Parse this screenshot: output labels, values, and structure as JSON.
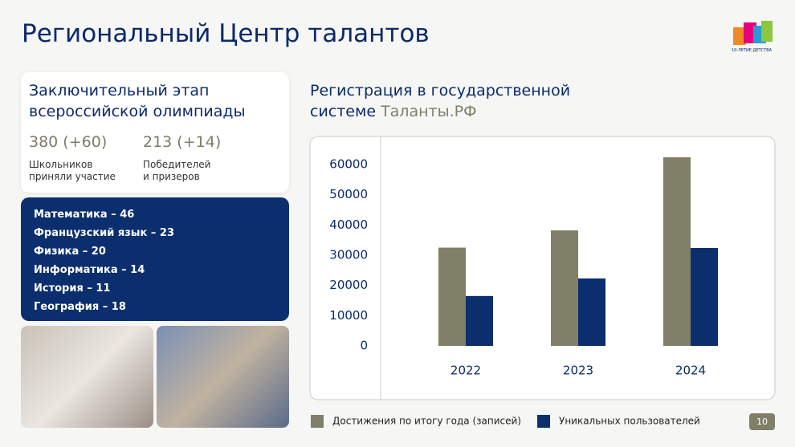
{
  "header": {
    "title": "Региональный Центр талантов",
    "logo_text": "10-ЛЕТИЕ ДЕТСТВА"
  },
  "olympiad": {
    "title": "Заключительный этап\nвсероссийской олимпиады",
    "stats": [
      {
        "value": "380 (+60)",
        "label": "Школьников\nприняли участие"
      },
      {
        "value": "213 (+14)",
        "label": "Победителей\nи призеров"
      }
    ],
    "subjects": [
      "Математика – 46",
      "Французский язык – 23",
      "Физика – 20",
      "Информатика – 14",
      "История – 11",
      "География – 18"
    ]
  },
  "chart_data": {
    "type": "bar",
    "title": "Регистрация в государственной\nсистеме ",
    "title_highlight": "Таланты.РФ",
    "categories": [
      "2022",
      "2023",
      "2024"
    ],
    "series": [
      {
        "name": "Достижения по итогу года (записей)",
        "color": "#807f67",
        "values": [
          32500,
          38200,
          62400
        ]
      },
      {
        "name": "Уникальных пользователей",
        "color": "#0b2f6e",
        "values": [
          16500,
          22300,
          32400
        ]
      }
    ],
    "ylim": [
      0,
      70000
    ],
    "yticks": [
      0,
      10000,
      20000,
      30000,
      40000,
      50000,
      60000
    ],
    "grid": false,
    "legend": "bottom"
  },
  "page_number": "10"
}
